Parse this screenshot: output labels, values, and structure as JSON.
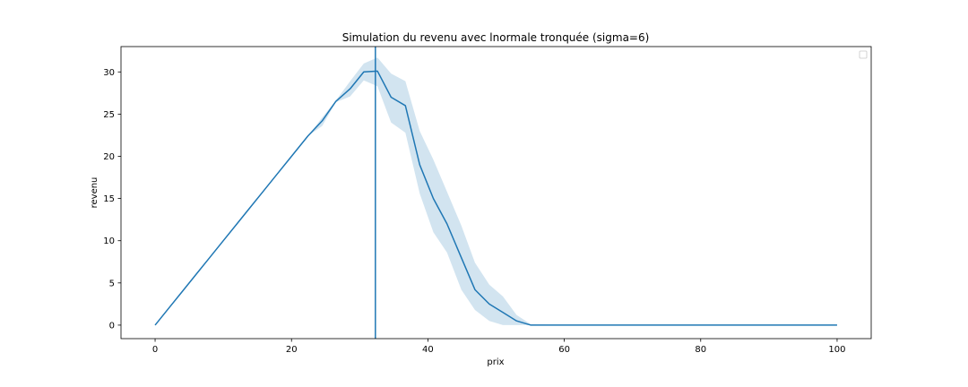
{
  "chart_data": {
    "type": "line",
    "title": "Simulation du revenu avec lnormale tronquée (sigma=6)",
    "xlabel": "prix",
    "ylabel": "revenu",
    "xlim": [
      -5,
      105
    ],
    "ylim": [
      -1.6,
      33
    ],
    "xticks": [
      0,
      20,
      40,
      60,
      80,
      100
    ],
    "yticks": [
      0,
      5,
      10,
      15,
      20,
      25,
      30
    ],
    "grid": false,
    "legend": {
      "placement": "top-right",
      "entries": []
    },
    "colors": {
      "line": "#1f77b4",
      "band": "#1f77b4",
      "vline": "#1f77b4"
    },
    "vline_x": 32.3,
    "series": [
      {
        "x": [
          0,
          2,
          4,
          6,
          8,
          10,
          12,
          14,
          16,
          18,
          20,
          22.4,
          24.5,
          26.5,
          28.6,
          30.6,
          32.6,
          34.6,
          36.7,
          38.8,
          40.8,
          42.8,
          44.9,
          46.9,
          49.0,
          51.0,
          53.0,
          55.1,
          60,
          70,
          80,
          90,
          100
        ],
        "y": [
          0,
          2,
          4,
          6,
          8,
          10,
          12,
          14,
          16,
          18,
          20,
          22.4,
          24.2,
          26.5,
          28.0,
          30.0,
          30.1,
          27.0,
          26.0,
          19.0,
          15.0,
          12.0,
          8.0,
          4.2,
          2.5,
          1.5,
          0.5,
          0,
          0,
          0,
          0,
          0,
          0
        ],
        "lower": [
          0,
          2,
          4,
          6,
          8,
          10,
          12,
          14,
          16,
          18,
          20,
          22.4,
          23.6,
          26.4,
          27.1,
          29.0,
          28.3,
          24.0,
          22.8,
          15.6,
          11.0,
          8.6,
          4.2,
          1.8,
          0.5,
          0,
          0,
          0,
          0,
          0,
          0,
          0,
          0
        ],
        "upper": [
          0,
          2,
          4,
          6,
          8,
          10,
          12,
          14,
          16,
          18,
          20,
          22.4,
          24.6,
          26.6,
          28.9,
          31.0,
          31.7,
          29.8,
          28.9,
          23.0,
          19.6,
          15.8,
          11.8,
          7.4,
          4.8,
          3.4,
          1.2,
          0.1,
          0,
          0,
          0,
          0,
          0
        ]
      }
    ]
  }
}
